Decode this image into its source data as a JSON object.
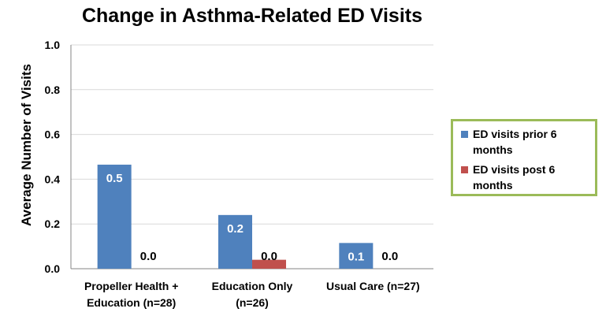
{
  "chart_data": {
    "type": "bar",
    "title": "Change in Asthma-Related ED Visits",
    "xlabel": "",
    "ylabel": "Average Number of Visits",
    "categories": [
      "Propeller Health + Education (n=28)",
      "Education Only (n=26)",
      "Usual Care (n=27)"
    ],
    "category_lines": [
      [
        "Propeller Health +",
        "Education (n=28)"
      ],
      [
        "Education Only",
        "(n=26)"
      ],
      [
        "Usual Care (n=27)"
      ]
    ],
    "series": [
      {
        "name": "ED visits prior 6 months",
        "values": [
          0.465,
          0.24,
          0.115
        ],
        "labels": [
          "0.5",
          "0.2",
          "0.1"
        ],
        "color": "#4f81bd"
      },
      {
        "name": "ED visits post 6 months",
        "values": [
          0.0,
          0.04,
          0.0
        ],
        "labels": [
          "0.0",
          "0.0",
          "0.0"
        ],
        "color": "#c0504d"
      }
    ],
    "ylim": [
      0,
      1.0
    ],
    "yticks": [
      "0.0",
      "0.2",
      "0.4",
      "0.6",
      "0.8",
      "1.0"
    ],
    "grid": true,
    "legend_position": "right",
    "legend_border_color": "#9bbb59"
  }
}
